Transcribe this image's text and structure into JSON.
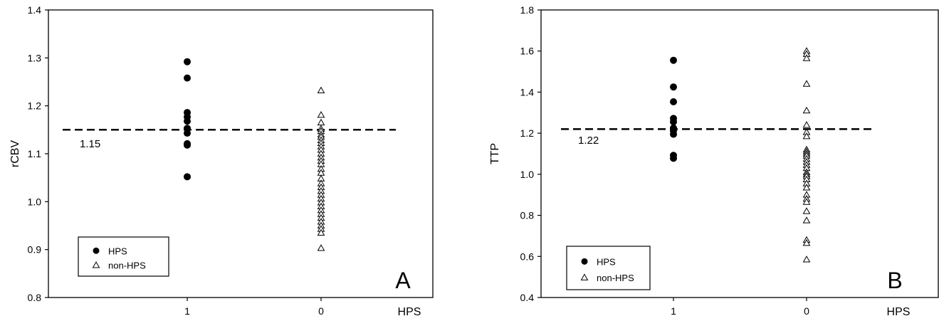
{
  "chart_data": [
    {
      "type": "scatter",
      "panel_label": "A",
      "xlabel": "HPS",
      "ylabel": "rCBV",
      "categories": [
        "1",
        "0"
      ],
      "ylim": [
        0.8,
        1.4
      ],
      "yticks": [
        "0.8",
        "0.9",
        "1.0",
        "1.1",
        "1.2",
        "1.3",
        "1.4"
      ],
      "threshold": {
        "value": 1.15,
        "label": "1.15",
        "style": "dashed"
      },
      "legend": {
        "position": "bottom-left",
        "entries": [
          "HPS",
          "non-HPS"
        ]
      },
      "grid": false,
      "series": [
        {
          "name": "HPS",
          "marker": "filled-circle",
          "category": "1",
          "values": [
            1.292,
            1.258,
            1.186,
            1.177,
            1.168,
            1.153,
            1.143,
            1.121,
            1.118,
            1.052
          ]
        },
        {
          "name": "non-HPS",
          "marker": "open-triangle",
          "category": "0",
          "values": [
            1.232,
            1.181,
            1.165,
            1.152,
            1.147,
            1.14,
            1.135,
            1.128,
            1.122,
            1.115,
            1.108,
            1.1,
            1.092,
            1.085,
            1.078,
            1.068,
            1.06,
            1.048,
            1.038,
            1.03,
            1.022,
            1.014,
            1.006,
            0.998,
            0.99,
            0.982,
            0.974,
            0.966,
            0.958,
            0.95,
            0.943,
            0.935,
            0.903
          ]
        }
      ]
    },
    {
      "type": "scatter",
      "panel_label": "B",
      "xlabel": "HPS",
      "ylabel": "TTP",
      "categories": [
        "1",
        "0"
      ],
      "ylim": [
        0.4,
        1.8
      ],
      "yticks": [
        "0.4",
        "0.6",
        "0.8",
        "1.0",
        "1.2",
        "1.4",
        "1.6",
        "1.8"
      ],
      "threshold": {
        "value": 1.22,
        "label": "1.22",
        "style": "dashed"
      },
      "legend": {
        "position": "bottom-left",
        "entries": [
          "HPS",
          "non-HPS"
        ]
      },
      "grid": false,
      "series": [
        {
          "name": "HPS",
          "marker": "filled-circle",
          "category": "1",
          "values": [
            1.555,
            1.425,
            1.353,
            1.272,
            1.255,
            1.225,
            1.212,
            1.195,
            1.092,
            1.078
          ]
        },
        {
          "name": "non-HPS",
          "marker": "open-triangle",
          "category": "0",
          "values": [
            1.6,
            1.585,
            1.565,
            1.44,
            1.31,
            1.24,
            1.205,
            1.185,
            1.12,
            1.11,
            1.1,
            1.09,
            1.075,
            1.06,
            1.045,
            1.03,
            1.01,
            1.0,
            0.99,
            0.975,
            0.955,
            0.935,
            0.9,
            0.88,
            0.865,
            0.82,
            0.775,
            0.68,
            0.665,
            0.585
          ]
        }
      ]
    }
  ]
}
